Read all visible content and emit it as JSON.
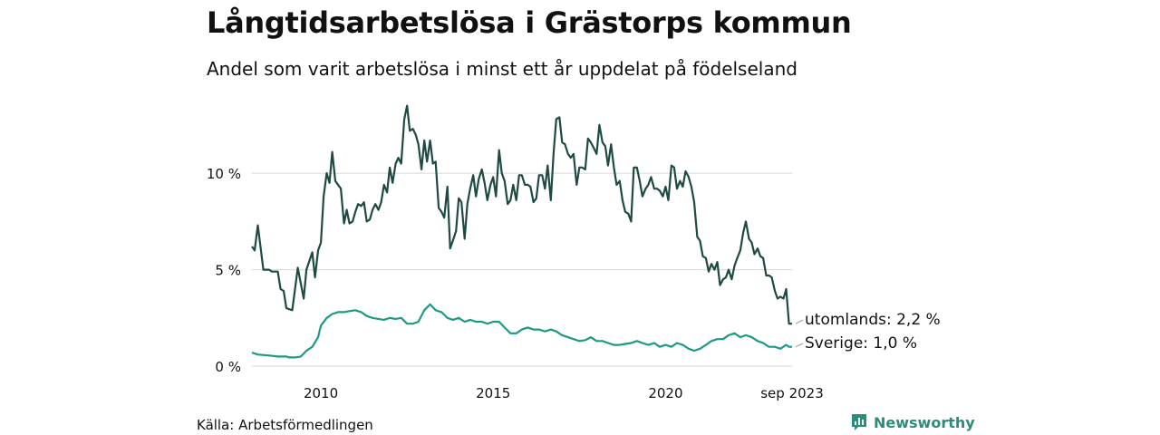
{
  "title": "Långtidsarbetslösa i Grästorps kommun",
  "subtitle": "Andel som varit arbetslösa i minst ett år uppdelat på födelseland",
  "source": "Källa: Arbetsförmedlingen",
  "brand": "Newsworthy",
  "chart_data": {
    "type": "line",
    "x_start": "2008-01",
    "x_end": "2023-09",
    "x_ticks": [
      {
        "label": "2010",
        "x": 2010.0
      },
      {
        "label": "2015",
        "x": 2015.0
      },
      {
        "label": "2020",
        "x": 2020.0
      },
      {
        "label": "sep 2023",
        "x": 2023.67
      }
    ],
    "y_ticks": [
      {
        "label": "0 %",
        "value": 0
      },
      {
        "label": "5 %",
        "value": 5
      },
      {
        "label": "10 %",
        "value": 10
      }
    ],
    "ylim": [
      0,
      14
    ],
    "series": [
      {
        "name": "utomlands",
        "end_label": "utomlands: 2,2 %",
        "color": "#1f4a44",
        "points": [
          [
            2008.0,
            6.2
          ],
          [
            2008.08,
            6.0
          ],
          [
            2008.17,
            7.3
          ],
          [
            2008.33,
            5.0
          ],
          [
            2008.5,
            5.0
          ],
          [
            2008.58,
            4.9
          ],
          [
            2008.75,
            4.9
          ],
          [
            2008.83,
            4.0
          ],
          [
            2008.92,
            3.9
          ],
          [
            2009.0,
            3.0
          ],
          [
            2009.17,
            2.9
          ],
          [
            2009.33,
            5.1
          ],
          [
            2009.5,
            3.5
          ],
          [
            2009.58,
            5.0
          ],
          [
            2009.75,
            5.9
          ],
          [
            2009.83,
            4.6
          ],
          [
            2009.92,
            6.0
          ],
          [
            2010.0,
            6.4
          ],
          [
            2010.08,
            8.8
          ],
          [
            2010.17,
            10.0
          ],
          [
            2010.25,
            9.5
          ],
          [
            2010.33,
            11.1
          ],
          [
            2010.42,
            9.6
          ],
          [
            2010.58,
            9.2
          ],
          [
            2010.67,
            7.4
          ],
          [
            2010.75,
            8.1
          ],
          [
            2010.83,
            7.4
          ],
          [
            2010.92,
            7.5
          ],
          [
            2011.0,
            8.0
          ],
          [
            2011.08,
            8.4
          ],
          [
            2011.17,
            8.3
          ],
          [
            2011.25,
            8.5
          ],
          [
            2011.33,
            7.5
          ],
          [
            2011.42,
            7.6
          ],
          [
            2011.5,
            8.1
          ],
          [
            2011.58,
            8.4
          ],
          [
            2011.67,
            8.1
          ],
          [
            2011.75,
            8.5
          ],
          [
            2011.83,
            9.4
          ],
          [
            2011.92,
            9.0
          ],
          [
            2012.0,
            10.3
          ],
          [
            2012.08,
            9.5
          ],
          [
            2012.17,
            10.5
          ],
          [
            2012.25,
            10.8
          ],
          [
            2012.33,
            10.5
          ],
          [
            2012.42,
            12.8
          ],
          [
            2012.5,
            13.5
          ],
          [
            2012.58,
            12.2
          ],
          [
            2012.67,
            12.3
          ],
          [
            2012.75,
            12.0
          ],
          [
            2012.83,
            11.5
          ],
          [
            2012.92,
            10.2
          ],
          [
            2013.0,
            11.7
          ],
          [
            2013.08,
            10.6
          ],
          [
            2013.17,
            11.7
          ],
          [
            2013.25,
            10.5
          ],
          [
            2013.33,
            10.6
          ],
          [
            2013.42,
            8.2
          ],
          [
            2013.5,
            8.0
          ],
          [
            2013.58,
            7.7
          ],
          [
            2013.67,
            9.3
          ],
          [
            2013.75,
            6.1
          ],
          [
            2013.83,
            6.5
          ],
          [
            2013.92,
            7.0
          ],
          [
            2014.0,
            8.7
          ],
          [
            2014.08,
            8.5
          ],
          [
            2014.17,
            6.6
          ],
          [
            2014.25,
            8.4
          ],
          [
            2014.33,
            9.2
          ],
          [
            2014.42,
            9.9
          ],
          [
            2014.5,
            8.8
          ],
          [
            2014.58,
            9.7
          ],
          [
            2014.67,
            10.2
          ],
          [
            2014.75,
            9.5
          ],
          [
            2014.83,
            8.6
          ],
          [
            2014.92,
            9.4
          ],
          [
            2015.0,
            9.8
          ],
          [
            2015.08,
            8.8
          ],
          [
            2015.17,
            11.2
          ],
          [
            2015.25,
            10.0
          ],
          [
            2015.33,
            9.6
          ],
          [
            2015.42,
            8.4
          ],
          [
            2015.5,
            8.6
          ],
          [
            2015.58,
            9.4
          ],
          [
            2015.67,
            8.6
          ],
          [
            2015.75,
            9.9
          ],
          [
            2015.83,
            9.9
          ],
          [
            2015.92,
            9.4
          ],
          [
            2016.0,
            9.4
          ],
          [
            2016.08,
            9.3
          ],
          [
            2016.17,
            8.5
          ],
          [
            2016.25,
            8.7
          ],
          [
            2016.33,
            9.9
          ],
          [
            2016.42,
            9.9
          ],
          [
            2016.5,
            9.2
          ],
          [
            2016.58,
            10.4
          ],
          [
            2016.67,
            8.6
          ],
          [
            2016.75,
            11.0
          ],
          [
            2016.83,
            12.8
          ],
          [
            2016.92,
            12.9
          ],
          [
            2017.0,
            11.6
          ],
          [
            2017.08,
            11.5
          ],
          [
            2017.17,
            11.0
          ],
          [
            2017.25,
            10.8
          ],
          [
            2017.33,
            11.0
          ],
          [
            2017.42,
            9.4
          ],
          [
            2017.5,
            10.3
          ],
          [
            2017.58,
            10.3
          ],
          [
            2017.67,
            10.2
          ],
          [
            2017.75,
            11.8
          ],
          [
            2017.83,
            11.6
          ],
          [
            2017.92,
            11.3
          ],
          [
            2018.0,
            11.0
          ],
          [
            2018.08,
            12.5
          ],
          [
            2018.17,
            11.6
          ],
          [
            2018.25,
            11.4
          ],
          [
            2018.33,
            10.4
          ],
          [
            2018.42,
            11.5
          ],
          [
            2018.5,
            10.3
          ],
          [
            2018.58,
            9.4
          ],
          [
            2018.67,
            9.6
          ],
          [
            2018.75,
            8.6
          ],
          [
            2018.83,
            8.0
          ],
          [
            2018.92,
            7.9
          ],
          [
            2019.0,
            7.5
          ],
          [
            2019.08,
            10.3
          ],
          [
            2019.17,
            10.3
          ],
          [
            2019.25,
            9.6
          ],
          [
            2019.33,
            8.8
          ],
          [
            2019.42,
            9.2
          ],
          [
            2019.5,
            9.4
          ],
          [
            2019.58,
            9.8
          ],
          [
            2019.67,
            9.2
          ],
          [
            2019.75,
            9.2
          ],
          [
            2019.83,
            9.1
          ],
          [
            2019.92,
            8.8
          ],
          [
            2020.0,
            9.3
          ],
          [
            2020.08,
            8.6
          ],
          [
            2020.17,
            10.4
          ],
          [
            2020.25,
            10.3
          ],
          [
            2020.33,
            9.2
          ],
          [
            2020.42,
            9.6
          ],
          [
            2020.5,
            9.3
          ],
          [
            2020.58,
            10.1
          ],
          [
            2020.67,
            9.8
          ],
          [
            2020.75,
            9.3
          ],
          [
            2020.83,
            8.5
          ],
          [
            2020.92,
            6.7
          ],
          [
            2021.0,
            6.5
          ],
          [
            2021.08,
            5.7
          ],
          [
            2021.17,
            5.6
          ],
          [
            2021.25,
            4.9
          ],
          [
            2021.33,
            5.3
          ],
          [
            2021.42,
            5.0
          ],
          [
            2021.5,
            5.4
          ],
          [
            2021.58,
            4.2
          ],
          [
            2021.67,
            4.5
          ],
          [
            2021.75,
            4.6
          ],
          [
            2021.83,
            5.0
          ],
          [
            2021.92,
            4.5
          ],
          [
            2022.0,
            5.2
          ],
          [
            2022.08,
            5.6
          ],
          [
            2022.17,
            6.0
          ],
          [
            2022.25,
            6.9
          ],
          [
            2022.33,
            7.5
          ],
          [
            2022.42,
            6.6
          ],
          [
            2022.5,
            6.4
          ],
          [
            2022.58,
            5.8
          ],
          [
            2022.67,
            6.1
          ],
          [
            2022.75,
            5.7
          ],
          [
            2022.83,
            5.6
          ],
          [
            2022.92,
            4.7
          ],
          [
            2023.0,
            4.7
          ],
          [
            2023.08,
            4.6
          ],
          [
            2023.17,
            3.9
          ],
          [
            2023.25,
            3.5
          ],
          [
            2023.33,
            3.6
          ],
          [
            2023.42,
            3.5
          ],
          [
            2023.5,
            4.0
          ],
          [
            2023.58,
            2.2
          ],
          [
            2023.67,
            2.2
          ]
        ]
      },
      {
        "name": "Sverige",
        "end_label": "Sverige: 1,0 %",
        "color": "#1c9a84",
        "points": [
          [
            2008.0,
            0.7
          ],
          [
            2008.17,
            0.6
          ],
          [
            2008.5,
            0.55
          ],
          [
            2008.75,
            0.5
          ],
          [
            2009.0,
            0.5
          ],
          [
            2009.08,
            0.45
          ],
          [
            2009.25,
            0.45
          ],
          [
            2009.42,
            0.5
          ],
          [
            2009.58,
            0.8
          ],
          [
            2009.75,
            1.0
          ],
          [
            2009.92,
            1.5
          ],
          [
            2010.0,
            2.1
          ],
          [
            2010.17,
            2.5
          ],
          [
            2010.33,
            2.7
          ],
          [
            2010.5,
            2.8
          ],
          [
            2010.67,
            2.8
          ],
          [
            2010.83,
            2.85
          ],
          [
            2011.0,
            2.9
          ],
          [
            2011.17,
            2.8
          ],
          [
            2011.33,
            2.6
          ],
          [
            2011.5,
            2.5
          ],
          [
            2011.67,
            2.45
          ],
          [
            2011.83,
            2.4
          ],
          [
            2012.0,
            2.5
          ],
          [
            2012.17,
            2.45
          ],
          [
            2012.33,
            2.5
          ],
          [
            2012.5,
            2.2
          ],
          [
            2012.67,
            2.2
          ],
          [
            2012.83,
            2.3
          ],
          [
            2013.0,
            2.9
          ],
          [
            2013.17,
            3.2
          ],
          [
            2013.33,
            2.9
          ],
          [
            2013.5,
            2.8
          ],
          [
            2013.67,
            2.5
          ],
          [
            2013.83,
            2.4
          ],
          [
            2014.0,
            2.5
          ],
          [
            2014.17,
            2.3
          ],
          [
            2014.33,
            2.4
          ],
          [
            2014.5,
            2.3
          ],
          [
            2014.67,
            2.3
          ],
          [
            2014.83,
            2.2
          ],
          [
            2015.0,
            2.3
          ],
          [
            2015.17,
            2.3
          ],
          [
            2015.33,
            2.0
          ],
          [
            2015.5,
            1.7
          ],
          [
            2015.67,
            1.7
          ],
          [
            2015.83,
            1.9
          ],
          [
            2016.0,
            2.0
          ],
          [
            2016.17,
            1.9
          ],
          [
            2016.33,
            1.9
          ],
          [
            2016.5,
            1.8
          ],
          [
            2016.67,
            1.9
          ],
          [
            2016.83,
            1.8
          ],
          [
            2017.0,
            1.6
          ],
          [
            2017.17,
            1.5
          ],
          [
            2017.33,
            1.4
          ],
          [
            2017.5,
            1.3
          ],
          [
            2017.67,
            1.35
          ],
          [
            2017.83,
            1.5
          ],
          [
            2018.0,
            1.3
          ],
          [
            2018.17,
            1.3
          ],
          [
            2018.33,
            1.2
          ],
          [
            2018.5,
            1.1
          ],
          [
            2018.67,
            1.1
          ],
          [
            2018.83,
            1.15
          ],
          [
            2019.0,
            1.2
          ],
          [
            2019.17,
            1.3
          ],
          [
            2019.33,
            1.2
          ],
          [
            2019.5,
            1.1
          ],
          [
            2019.67,
            1.2
          ],
          [
            2019.83,
            1.0
          ],
          [
            2020.0,
            1.1
          ],
          [
            2020.17,
            1.0
          ],
          [
            2020.33,
            1.2
          ],
          [
            2020.5,
            1.1
          ],
          [
            2020.67,
            0.9
          ],
          [
            2020.83,
            0.8
          ],
          [
            2021.0,
            0.9
          ],
          [
            2021.17,
            1.1
          ],
          [
            2021.33,
            1.3
          ],
          [
            2021.5,
            1.4
          ],
          [
            2021.67,
            1.4
          ],
          [
            2021.83,
            1.6
          ],
          [
            2022.0,
            1.7
          ],
          [
            2022.17,
            1.5
          ],
          [
            2022.33,
            1.6
          ],
          [
            2022.5,
            1.5
          ],
          [
            2022.67,
            1.3
          ],
          [
            2022.83,
            1.2
          ],
          [
            2023.0,
            1.0
          ],
          [
            2023.17,
            1.0
          ],
          [
            2023.33,
            0.9
          ],
          [
            2023.5,
            1.1
          ],
          [
            2023.58,
            1.0
          ],
          [
            2023.67,
            1.0
          ]
        ]
      }
    ]
  }
}
